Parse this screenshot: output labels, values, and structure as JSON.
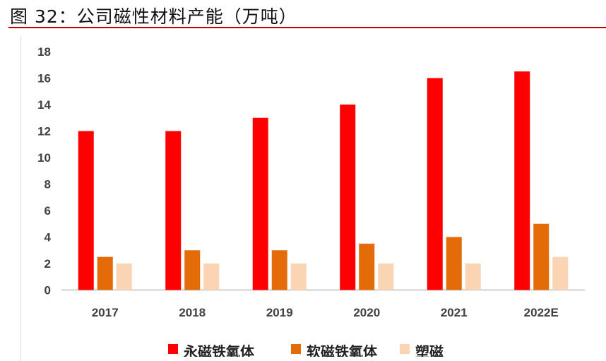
{
  "figure": {
    "title": "图 32：公司磁性材料产能（万吨）"
  },
  "chart_data": {
    "type": "bar",
    "categories": [
      "2017",
      "2018",
      "2019",
      "2020",
      "2021",
      "2022E"
    ],
    "series": [
      {
        "name": "永磁铁氧体",
        "color": "#ff0000",
        "values": [
          12,
          12,
          13,
          14,
          16,
          16.5
        ]
      },
      {
        "name": "软磁铁氧体",
        "color": "#e36c09",
        "values": [
          2.5,
          3,
          3,
          3.5,
          4,
          5
        ]
      },
      {
        "name": "塑磁",
        "color": "#fbd4b4",
        "values": [
          2,
          2,
          2,
          2,
          2,
          2.5
        ]
      }
    ],
    "yticks": [
      "0",
      "2",
      "4",
      "6",
      "8",
      "10",
      "12",
      "14",
      "16",
      "18"
    ],
    "ylim": [
      0,
      18
    ],
    "grid": false,
    "legend_position": "bottom"
  }
}
